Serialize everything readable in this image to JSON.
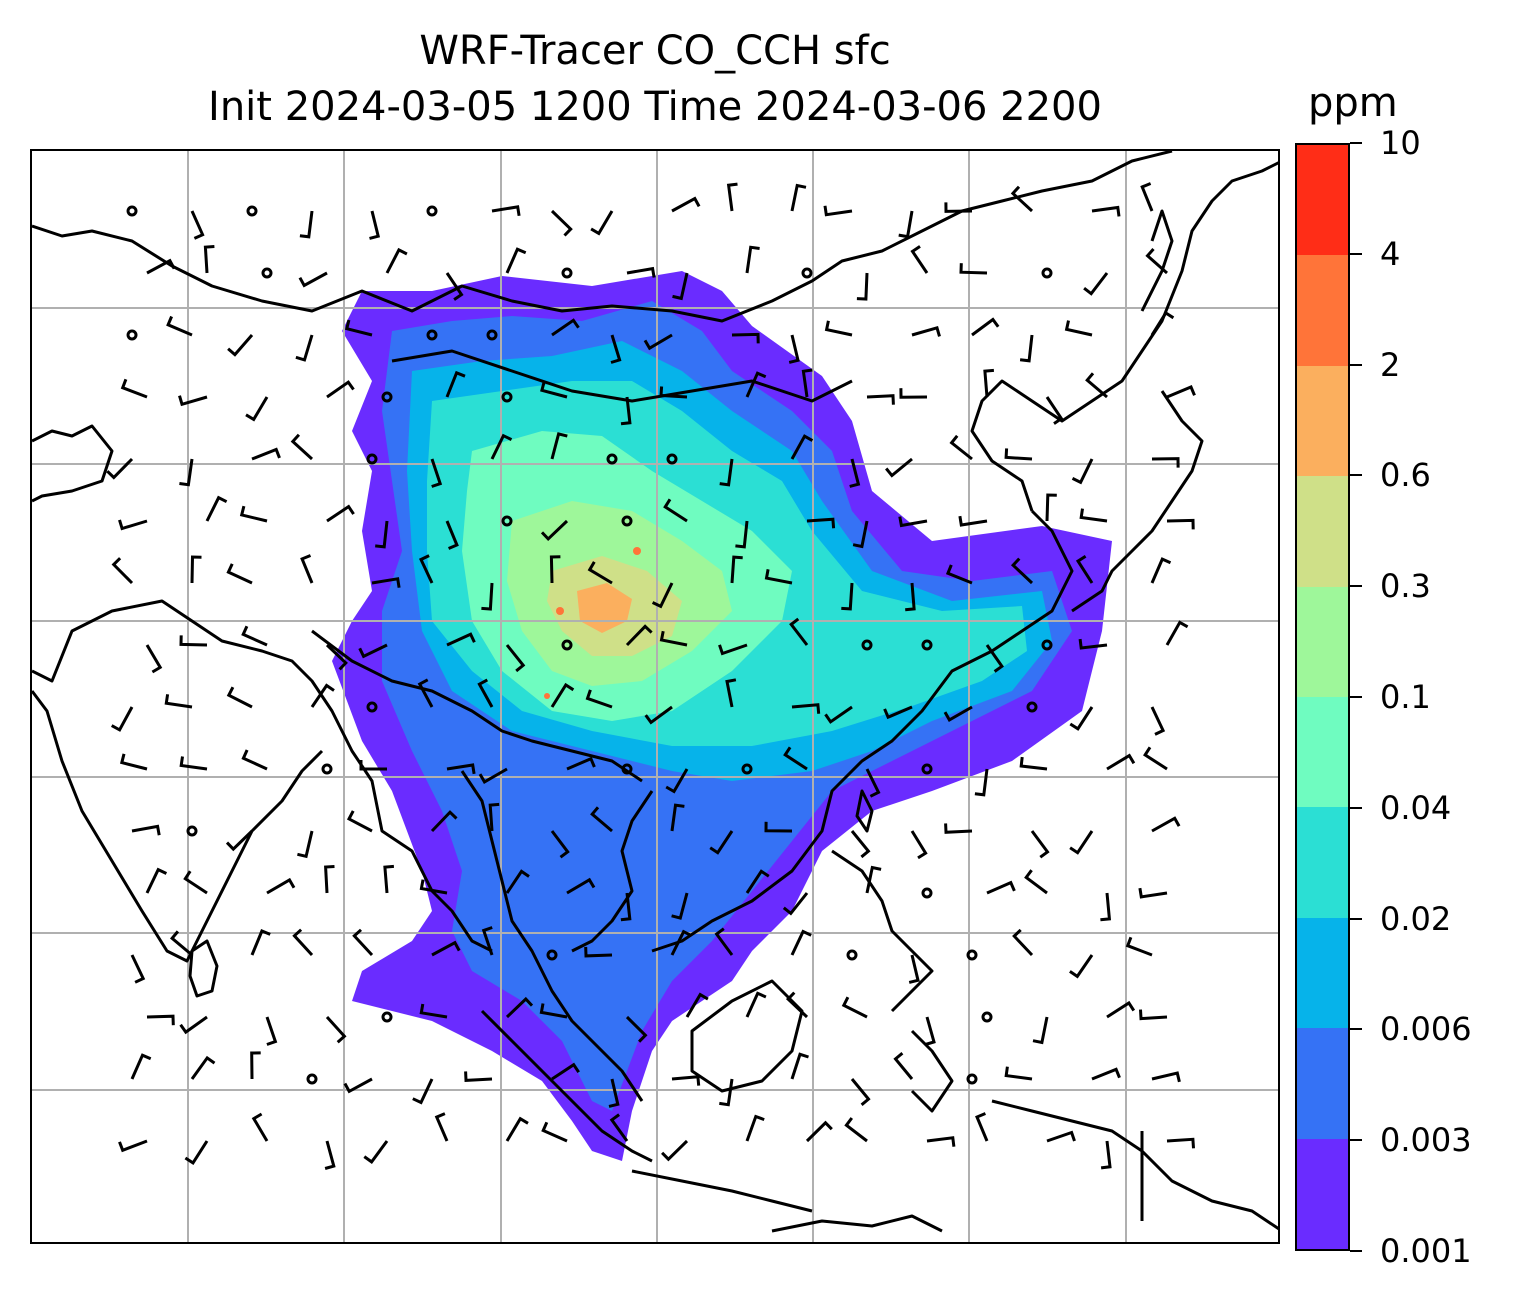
{
  "title": {
    "line1": "WRF-Tracer CO_CCH sfc",
    "line2": "Init 2024-03-05 1200 Time 2024-03-06 2200"
  },
  "colorbar": {
    "unit": "ppm",
    "levels": [
      "0.001",
      "0.003",
      "0.006",
      "0.02",
      "0.04",
      "0.1",
      "0.3",
      "0.6",
      "2",
      "4",
      "10"
    ],
    "colors": [
      "#6a2cff",
      "#3572f5",
      "#06b3ea",
      "#2bdfd4",
      "#6ffcc0",
      "#9ef79a",
      "#cfe088",
      "#fbaf5e",
      "#ff7439",
      "#ff2d17"
    ]
  },
  "map": {
    "gridlines": true,
    "coastline_color": "#000000",
    "grid_color": "#b0b0b0",
    "wind_barb_color": "#000000"
  }
}
